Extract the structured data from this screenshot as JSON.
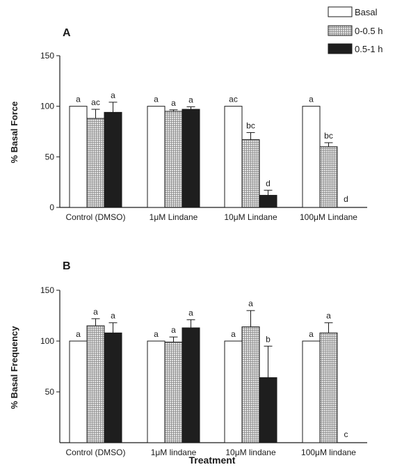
{
  "chart_data": [
    {
      "type": "bar",
      "panel_label": "A",
      "ylabel": "% Basal Force",
      "xlabel": "",
      "ylim": [
        0,
        150
      ],
      "yticks": [
        0,
        50,
        100,
        150
      ],
      "categories": [
        "Control (DMSO)",
        "1μM Lindane",
        "10μM Lindane",
        "100μM Lindane"
      ],
      "series": [
        {
          "name": "Basal",
          "color": "#ffffff",
          "pattern": "none",
          "values": [
            100,
            100,
            100,
            100
          ],
          "errors": [
            0,
            0,
            0,
            0
          ],
          "labels": [
            "a",
            "a",
            "ac",
            "a"
          ]
        },
        {
          "name": "0-0.5 h",
          "color": "#c8c8c8",
          "pattern": "grid",
          "values": [
            88,
            95,
            67,
            60
          ],
          "errors": [
            9,
            1.5,
            7,
            4
          ],
          "labels": [
            "ac",
            "a",
            "bc",
            "bc"
          ]
        },
        {
          "name": "0.5-1 h",
          "color": "#1e1e1e",
          "pattern": "none",
          "values": [
            94,
            97,
            12,
            0
          ],
          "errors": [
            10,
            2.5,
            5,
            0
          ],
          "labels": [
            "a",
            "a",
            "d",
            "d"
          ]
        }
      ]
    },
    {
      "type": "bar",
      "panel_label": "B",
      "ylabel": "% Basal Frequency",
      "xlabel": "Treatment",
      "ylim": [
        0,
        150
      ],
      "yticks": [
        50,
        100,
        150
      ],
      "categories": [
        "Control (DMSO)",
        "1μM lindane",
        "10μM lindane",
        "100μM lindane"
      ],
      "series": [
        {
          "name": "Basal",
          "color": "#ffffff",
          "pattern": "none",
          "values": [
            100,
            100,
            100,
            100
          ],
          "errors": [
            0,
            0,
            0,
            0
          ],
          "labels": [
            "a",
            "a",
            "a",
            "a"
          ]
        },
        {
          "name": "0-0.5 h",
          "color": "#c8c8c8",
          "pattern": "grid",
          "values": [
            115,
            99,
            114,
            108
          ],
          "errors": [
            7,
            5,
            16,
            10
          ],
          "labels": [
            "a",
            "a",
            "a",
            "a"
          ]
        },
        {
          "name": "0.5-1 h",
          "color": "#1e1e1e",
          "pattern": "none",
          "values": [
            108,
            113,
            64,
            0
          ],
          "errors": [
            10,
            8,
            31,
            0
          ],
          "labels": [
            "a",
            "a",
            "b",
            "c"
          ]
        }
      ]
    }
  ],
  "legend": {
    "position": "top-right",
    "entries": [
      {
        "label": "Basal",
        "color": "#ffffff"
      },
      {
        "label": "0-0.5 h",
        "color": "#c8c8c8"
      },
      {
        "label": "0.5-1 h",
        "color": "#1e1e1e"
      }
    ]
  }
}
